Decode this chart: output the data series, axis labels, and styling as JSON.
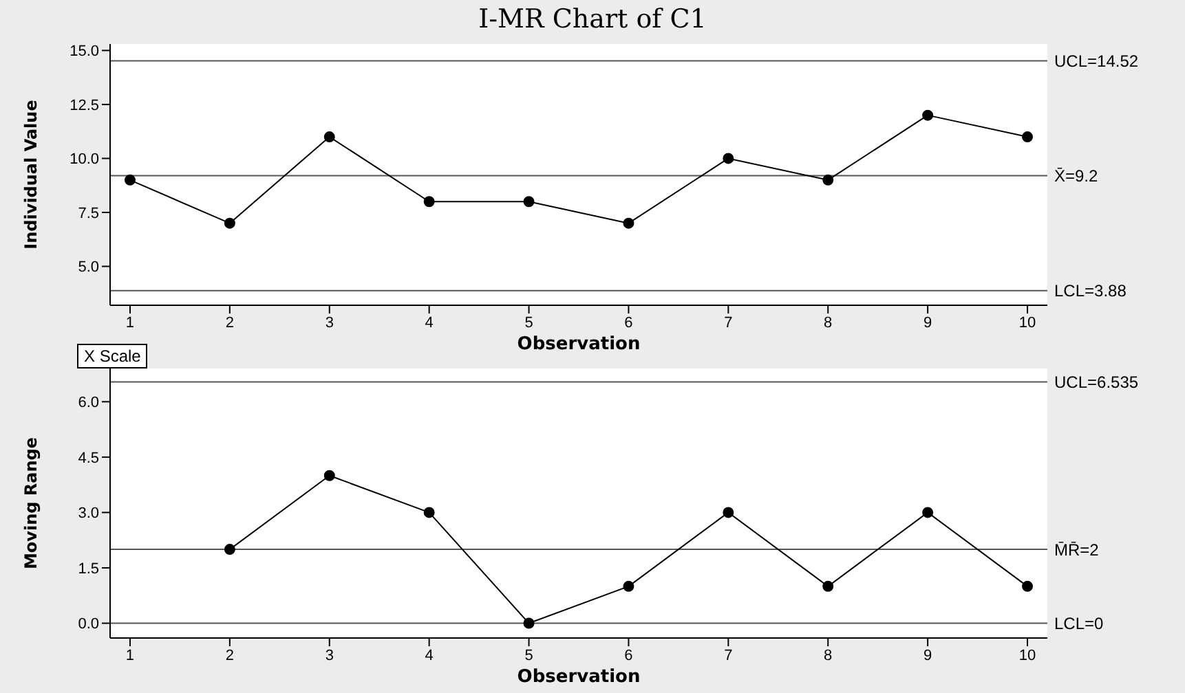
{
  "chart_data": [
    {
      "type": "line",
      "title": "I-MR Chart of C1",
      "xlabel": "Observation",
      "ylabel": "Individual Value",
      "x": [
        1,
        2,
        3,
        4,
        5,
        6,
        7,
        8,
        9,
        10
      ],
      "series": [
        {
          "color": "#000000",
          "values": [
            9,
            7,
            11,
            8,
            8,
            7,
            10,
            9,
            12,
            11
          ]
        }
      ],
      "xlim": [
        0.8,
        10.2
      ],
      "xticks": [
        1,
        2,
        3,
        4,
        5,
        6,
        7,
        8,
        9,
        10
      ],
      "ylim": [
        3.2,
        15.3
      ],
      "yticks": [
        {
          "value": 5,
          "label": "5.0"
        },
        {
          "value": 7.5,
          "label": "7.5"
        },
        {
          "value": 10,
          "label": "10.0"
        },
        {
          "value": 12.5,
          "label": "12.5"
        },
        {
          "value": 15,
          "label": "15.0"
        }
      ],
      "ref_lines": [
        {
          "axis": "y",
          "value": 14.52,
          "label": "UCL=14.52",
          "color": "#555555"
        },
        {
          "axis": "y",
          "value": 9.2,
          "label": "X̄=9.2",
          "color": "#555555"
        },
        {
          "axis": "y",
          "value": 3.88,
          "label": "LCL=3.88",
          "color": "#555555"
        }
      ],
      "annotations": [
        "X Scale"
      ],
      "marker": "circle",
      "grid": false,
      "legend": false
    },
    {
      "type": "line",
      "xlabel": "Observation",
      "ylabel": "Moving Range",
      "x": [
        2,
        3,
        4,
        5,
        6,
        7,
        8,
        9,
        10
      ],
      "series": [
        {
          "color": "#000000",
          "values": [
            2,
            4,
            3,
            0,
            1,
            3,
            1,
            3,
            1
          ]
        }
      ],
      "xlim": [
        0.8,
        10.2
      ],
      "xticks": [
        1,
        2,
        3,
        4,
        5,
        6,
        7,
        8,
        9,
        10
      ],
      "ylim": [
        -0.4,
        6.9
      ],
      "yticks": [
        {
          "value": 0,
          "label": "0.0"
        },
        {
          "value": 1.5,
          "label": "1.5"
        },
        {
          "value": 3,
          "label": "3.0"
        },
        {
          "value": 4.5,
          "label": "4.5"
        },
        {
          "value": 6,
          "label": "6.0"
        }
      ],
      "ref_lines": [
        {
          "axis": "y",
          "value": 6.535,
          "label": "UCL=6.535",
          "color": "#555555"
        },
        {
          "axis": "y",
          "value": 2,
          "label": "M̄R̄=2",
          "color": "#555555"
        },
        {
          "axis": "y",
          "value": 0,
          "label": "LCL=0",
          "color": "#555555"
        }
      ],
      "marker": "circle",
      "grid": false,
      "legend": false
    }
  ]
}
